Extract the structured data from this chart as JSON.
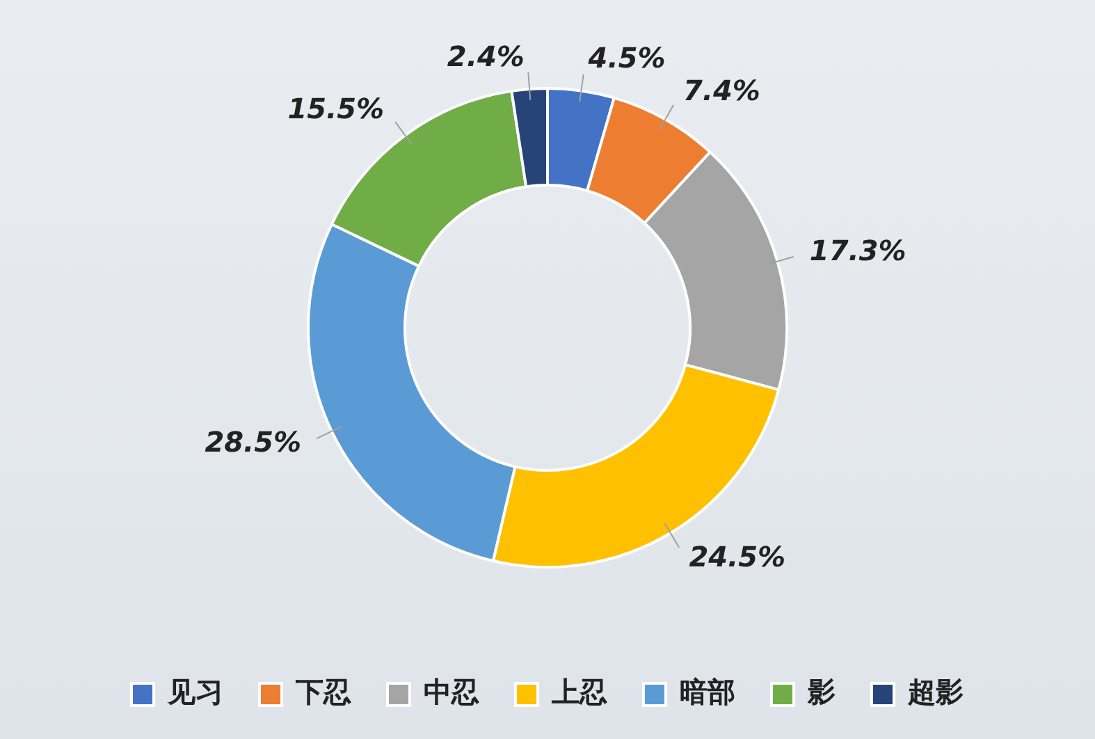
{
  "chart_data": {
    "type": "donut",
    "categories": [
      "见习",
      "下忍",
      "中忍",
      "上忍",
      "暗部",
      "影",
      "超影"
    ],
    "values": [
      4.5,
      7.4,
      17.3,
      24.5,
      28.5,
      15.5,
      2.4
    ],
    "colors": [
      "#4472c4",
      "#ed7d31",
      "#a5a5a5",
      "#ffc000",
      "#5b9bd5",
      "#70ad47",
      "#264478"
    ],
    "value_labels": [
      "4.5%",
      "7.4%",
      "17.3%",
      "24.5%",
      "28.5%",
      "15.5%",
      "2.4%"
    ],
    "legend": "bottom"
  }
}
